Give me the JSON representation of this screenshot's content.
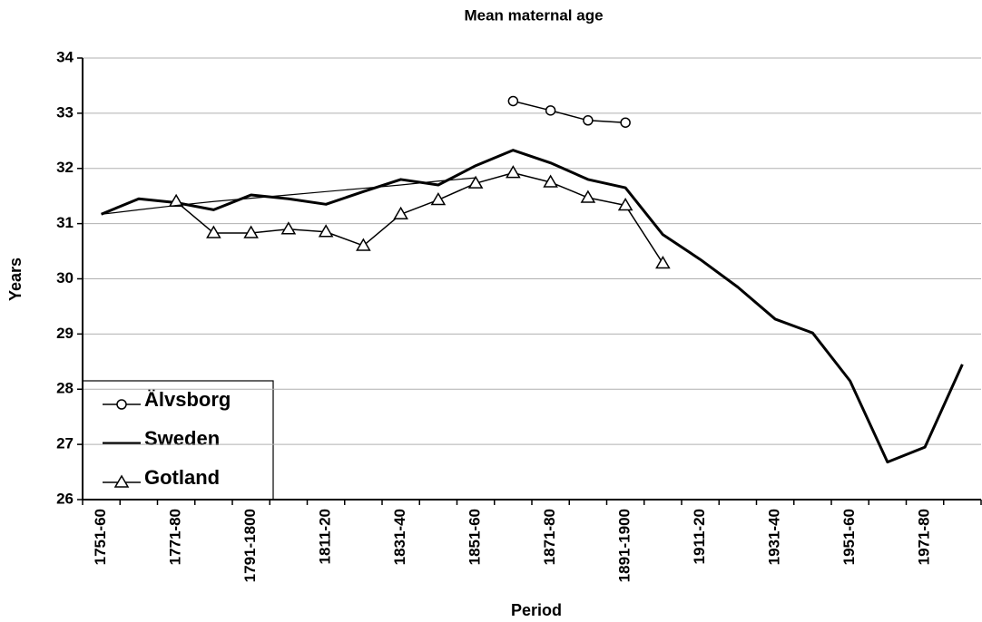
{
  "chart_data": {
    "type": "line",
    "title": "Mean maternal age",
    "x_label": "Period",
    "y_label": "Years",
    "categories": [
      "1751-60",
      null,
      "1771-80",
      null,
      "1791-1800",
      null,
      "1811-20",
      null,
      "1831-40",
      null,
      "1851-60",
      null,
      "1871-80",
      null,
      "1891-1900",
      null,
      "1911-20",
      null,
      "1931-40",
      null,
      "1951-60",
      null,
      "1971-80",
      null
    ],
    "series": [
      {
        "name": "Älvsborg",
        "color": "#000000",
        "marker": "circle",
        "width": 1.5,
        "values": [
          null,
          null,
          null,
          null,
          null,
          null,
          null,
          null,
          null,
          null,
          null,
          33.22,
          33.05,
          32.87,
          32.83,
          null,
          null,
          null,
          null,
          null,
          null,
          null,
          null,
          null
        ]
      },
      {
        "name": "Sweden",
        "color": "#000000",
        "marker": "none",
        "width": 3,
        "values": [
          31.17,
          31.45,
          31.38,
          31.25,
          31.52,
          31.45,
          31.35,
          31.58,
          31.8,
          31.7,
          32.05,
          32.33,
          32.1,
          31.8,
          31.65,
          30.8,
          30.35,
          29.85,
          29.27,
          29.02,
          28.15,
          26.68,
          26.95,
          28.45
        ]
      },
      {
        "name": "Gotland",
        "color": "#000000",
        "marker": "triangle",
        "width": 1.5,
        "values": [
          null,
          null,
          31.4,
          30.83,
          30.83,
          30.9,
          30.85,
          30.6,
          31.17,
          31.43,
          31.73,
          31.92,
          31.75,
          31.47,
          31.33,
          30.28,
          null,
          null,
          null,
          null,
          null,
          null,
          null,
          null
        ]
      },
      {
        "color": "#000000",
        "marker": "none",
        "width": 1.2,
        "values": [
          31.17,
          31.25,
          31.33,
          31.4,
          31.46,
          31.52,
          31.58,
          31.64,
          31.7,
          31.77,
          31.83,
          null,
          null,
          null,
          null,
          null,
          null,
          null,
          null,
          null,
          null,
          null,
          null,
          null
        ]
      }
    ],
    "ylim": [
      26,
      34
    ],
    "yticks": [
      26,
      27,
      28,
      29,
      30,
      31,
      32,
      33,
      34
    ],
    "grid": true,
    "legend": "lower left"
  }
}
